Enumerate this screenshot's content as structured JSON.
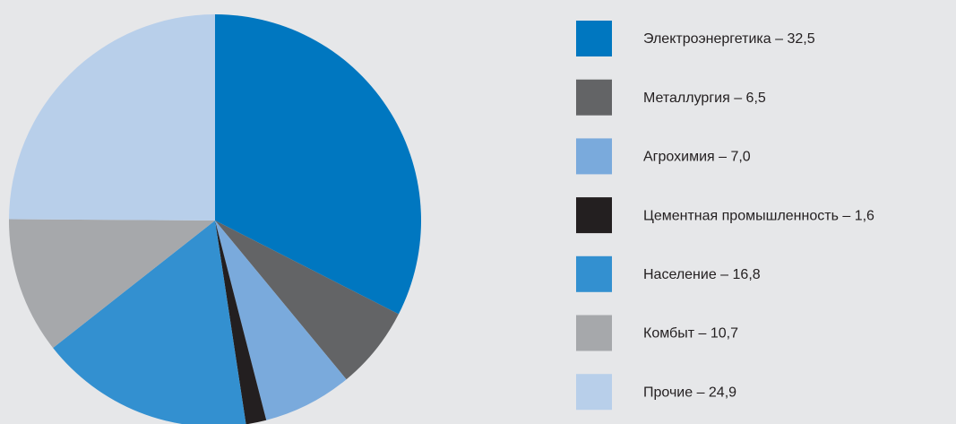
{
  "chart_data": {
    "type": "pie",
    "categories": [
      "Электроэнергетика – 32,5",
      "Металлургия – 6,5",
      "Агрохимия – 7,0",
      "Цементная промышленность – 1,6",
      "Население – 16,8",
      "Комбыт – 10,7",
      "Прочие – 24,9"
    ],
    "values": [
      32.5,
      6.5,
      7.0,
      1.6,
      16.8,
      10.7,
      24.9
    ],
    "colors": [
      "#0077c0",
      "#636466",
      "#7aaadc",
      "#231f20",
      "#3390d0",
      "#a6a8ab",
      "#b8cfea"
    ],
    "legend": "right"
  }
}
